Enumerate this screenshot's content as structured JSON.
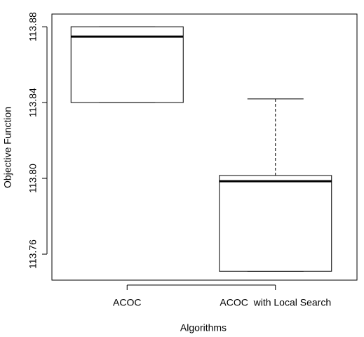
{
  "chart_data": {
    "type": "box",
    "x_label": "Algorithms",
    "y_label": "Objective Function",
    "categories": [
      "ACOC",
      "ACOC  with Local Search"
    ],
    "boxes": [
      {
        "min": 113.84,
        "q1": 113.84,
        "median": 113.8748,
        "q3": 113.88,
        "max": 113.88
      },
      {
        "min": 113.751,
        "q1": 113.751,
        "median": 113.7985,
        "q3": 113.8015,
        "max": 113.8419
      }
    ],
    "ylim": [
      113.7463,
      113.8867
    ],
    "yticks": [
      113.76,
      {
        "value": 113.8,
        "label": "113.80"
      },
      113.84,
      113.88
    ]
  }
}
